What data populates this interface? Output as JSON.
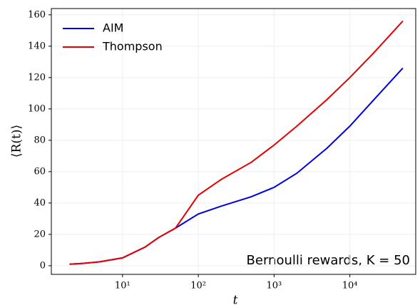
{
  "chart_data": {
    "type": "line",
    "xlabel": "t",
    "ylabel": "⟨R(t)⟩",
    "annotation": "Bernoulli rewards, K = 50",
    "xscale": "log",
    "grid": true,
    "legend": "upper left",
    "x": [
      2,
      3,
      5,
      10,
      20,
      30,
      50,
      100,
      200,
      500,
      1000,
      2000,
      5000,
      10000,
      20000,
      50000
    ],
    "series": [
      {
        "name": "AIM",
        "color": "#0000e6",
        "values": [
          1,
          1.5,
          2.5,
          5,
          12,
          18,
          24,
          33,
          38,
          44,
          50,
          59,
          75,
          89,
          105,
          126
        ]
      },
      {
        "name": "Thompson",
        "color": "#e60000",
        "values": [
          1,
          1.5,
          2.5,
          5,
          12,
          18,
          24,
          45,
          55,
          66,
          77,
          89,
          106,
          120,
          135,
          156
        ]
      }
    ],
    "xlim": [
      1.15,
      74000
    ],
    "ylim": [
      -5.5,
      164
    ],
    "xticks": [
      {
        "value": 10,
        "label": "10¹"
      },
      {
        "value": 100,
        "label": "10²"
      },
      {
        "value": 1000,
        "label": "10³"
      },
      {
        "value": 10000,
        "label": "10⁴"
      }
    ],
    "yticks": [
      0,
      20,
      40,
      60,
      80,
      100,
      120,
      140,
      160
    ]
  }
}
